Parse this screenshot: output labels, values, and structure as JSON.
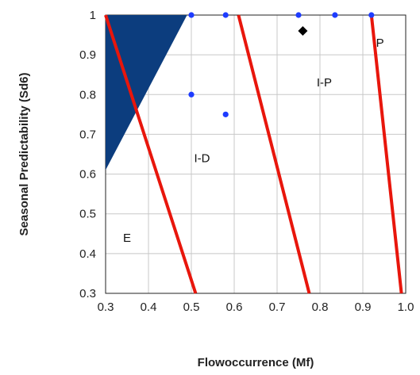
{
  "chart_data": {
    "type": "scatter",
    "title": "",
    "xlabel": "Flowoccurrence (Mf)",
    "ylabel": "Seasonal Predictability (Sd6)",
    "xlim": [
      0.3,
      1.0
    ],
    "ylim": [
      0.3,
      1.0
    ],
    "x_ticks": [
      "0.3",
      "0.4",
      "0.5",
      "0.6",
      "0.7",
      "0.8",
      "0.9",
      "1.0"
    ],
    "y_ticks": [
      "0.3",
      "0.4",
      "0.5",
      "0.6",
      "0.7",
      "0.8",
      "0.9",
      "1"
    ],
    "grid": true,
    "legend": "none",
    "colors": {
      "boundary": "#e8160c",
      "point": "#1e3cff",
      "shaded": "#0c3d7e",
      "marker": "#000000"
    },
    "shaded_region": {
      "x": [
        0.3,
        0.49,
        0.3
      ],
      "y": [
        1.0,
        1.0,
        0.61
      ]
    },
    "boundaries": [
      {
        "x": [
          0.3,
          0.51
        ],
        "y": [
          1.0,
          0.3
        ]
      },
      {
        "x": [
          0.61,
          0.775
        ],
        "y": [
          1.0,
          0.3
        ]
      },
      {
        "x": [
          0.92,
          0.99
        ],
        "y": [
          1.0,
          0.3
        ]
      }
    ],
    "points": [
      {
        "x": 0.5,
        "y": 1.0
      },
      {
        "x": 0.58,
        "y": 1.0
      },
      {
        "x": 0.75,
        "y": 1.0
      },
      {
        "x": 0.835,
        "y": 1.0
      },
      {
        "x": 0.92,
        "y": 1.0
      },
      {
        "x": 0.5,
        "y": 0.8
      },
      {
        "x": 0.58,
        "y": 0.75
      }
    ],
    "highlight_point": {
      "x": 0.76,
      "y": 0.96,
      "marker": "diamond"
    },
    "region_labels": [
      {
        "text": "E",
        "x": 0.35,
        "y": 0.44
      },
      {
        "text": "I-D",
        "x": 0.525,
        "y": 0.64
      },
      {
        "text": "I-P",
        "x": 0.81,
        "y": 0.83
      },
      {
        "text": "P",
        "x": 0.94,
        "y": 0.93
      }
    ]
  }
}
